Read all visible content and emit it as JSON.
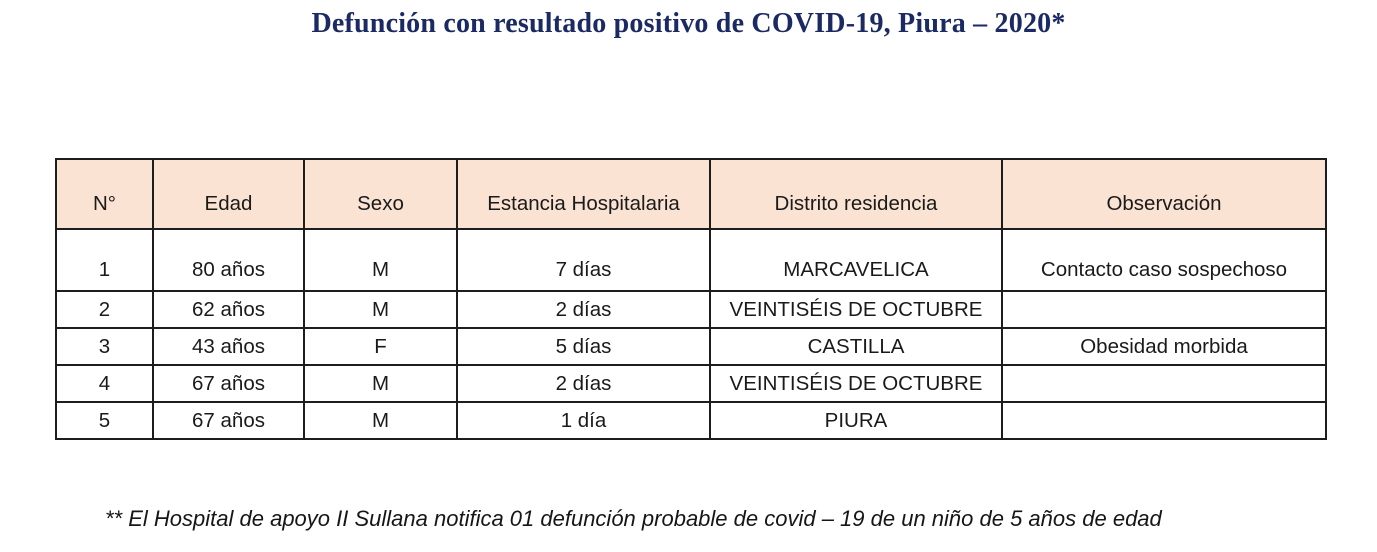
{
  "title": "Defunción con resultado positivo de COVID-19, Piura – 2020*",
  "table": {
    "columns": [
      "N°",
      "Edad",
      "Sexo",
      "Estancia Hospitalaria",
      "Distrito residencia",
      "Observación"
    ],
    "rows": [
      [
        "1",
        "80 años",
        "M",
        "7 días",
        "MARCAVELICA",
        "Contacto caso sospechoso"
      ],
      [
        "2",
        "62 años",
        "M",
        "2 días",
        "VEINTISÉIS DE OCTUBRE",
        ""
      ],
      [
        "3",
        "43 años",
        "F",
        "5 días",
        "CASTILLA",
        "Obesidad morbida"
      ],
      [
        "4",
        "67 años",
        "M",
        "2 días",
        "VEINTISÉIS DE OCTUBRE",
        ""
      ],
      [
        "5",
        "67 años",
        "M",
        "1 día",
        "PIURA",
        ""
      ]
    ]
  },
  "footnote": "** El Hospital de apoyo II Sullana notifica 01 defunción probable de covid – 19 de un niño de 5 años de edad",
  "colors": {
    "title_text": "#1b2a63",
    "header_background": "#fbe3d4",
    "table_border": "#1d1d1d",
    "body_text": "#1a1a1a"
  }
}
